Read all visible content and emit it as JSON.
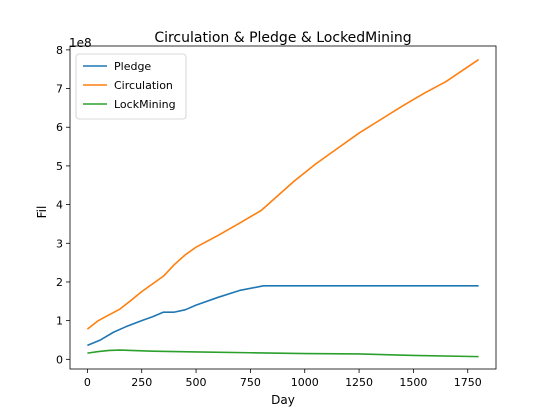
{
  "chart_data": {
    "type": "line",
    "title": "Circulation & Pledge & LockedMining",
    "xlabel": "Day",
    "ylabel": "Fil",
    "y_multiplier_label": "1e8",
    "xlim": [
      -80,
      1880
    ],
    "ylim": [
      -0.25,
      8.1
    ],
    "xticks": [
      0,
      250,
      500,
      750,
      1000,
      1250,
      1500,
      1750
    ],
    "yticks": [
      0,
      1,
      2,
      3,
      4,
      5,
      6,
      7,
      8
    ],
    "legend_position": "top-left",
    "series": [
      {
        "name": "Pledge",
        "color": "#1f77b4",
        "points": [
          [
            0,
            0.36
          ],
          [
            60,
            0.5
          ],
          [
            120,
            0.7
          ],
          [
            180,
            0.85
          ],
          [
            250,
            1.0
          ],
          [
            300,
            1.1
          ],
          [
            350,
            1.22
          ],
          [
            400,
            1.22
          ],
          [
            450,
            1.28
          ],
          [
            500,
            1.4
          ],
          [
            600,
            1.6
          ],
          [
            700,
            1.78
          ],
          [
            810,
            1.9
          ],
          [
            1000,
            1.9
          ],
          [
            1250,
            1.9
          ],
          [
            1500,
            1.9
          ],
          [
            1800,
            1.9
          ]
        ]
      },
      {
        "name": "Circulation",
        "color": "#ff7f0e",
        "points": [
          [
            0,
            0.78
          ],
          [
            50,
            1.0
          ],
          [
            100,
            1.15
          ],
          [
            150,
            1.3
          ],
          [
            200,
            1.52
          ],
          [
            250,
            1.75
          ],
          [
            300,
            1.95
          ],
          [
            350,
            2.15
          ],
          [
            400,
            2.45
          ],
          [
            450,
            2.7
          ],
          [
            500,
            2.9
          ],
          [
            600,
            3.2
          ],
          [
            700,
            3.52
          ],
          [
            800,
            3.85
          ],
          [
            850,
            4.1
          ],
          [
            950,
            4.6
          ],
          [
            1050,
            5.05
          ],
          [
            1150,
            5.45
          ],
          [
            1250,
            5.85
          ],
          [
            1350,
            6.2
          ],
          [
            1450,
            6.55
          ],
          [
            1550,
            6.88
          ],
          [
            1650,
            7.18
          ],
          [
            1800,
            7.75
          ]
        ]
      },
      {
        "name": "LockMining",
        "color": "#2ca02c",
        "points": [
          [
            0,
            0.16
          ],
          [
            50,
            0.2
          ],
          [
            100,
            0.23
          ],
          [
            150,
            0.24
          ],
          [
            200,
            0.23
          ],
          [
            300,
            0.21
          ],
          [
            500,
            0.19
          ],
          [
            750,
            0.17
          ],
          [
            1000,
            0.15
          ],
          [
            1250,
            0.14
          ],
          [
            1500,
            0.1
          ],
          [
            1800,
            0.07
          ]
        ]
      }
    ]
  }
}
